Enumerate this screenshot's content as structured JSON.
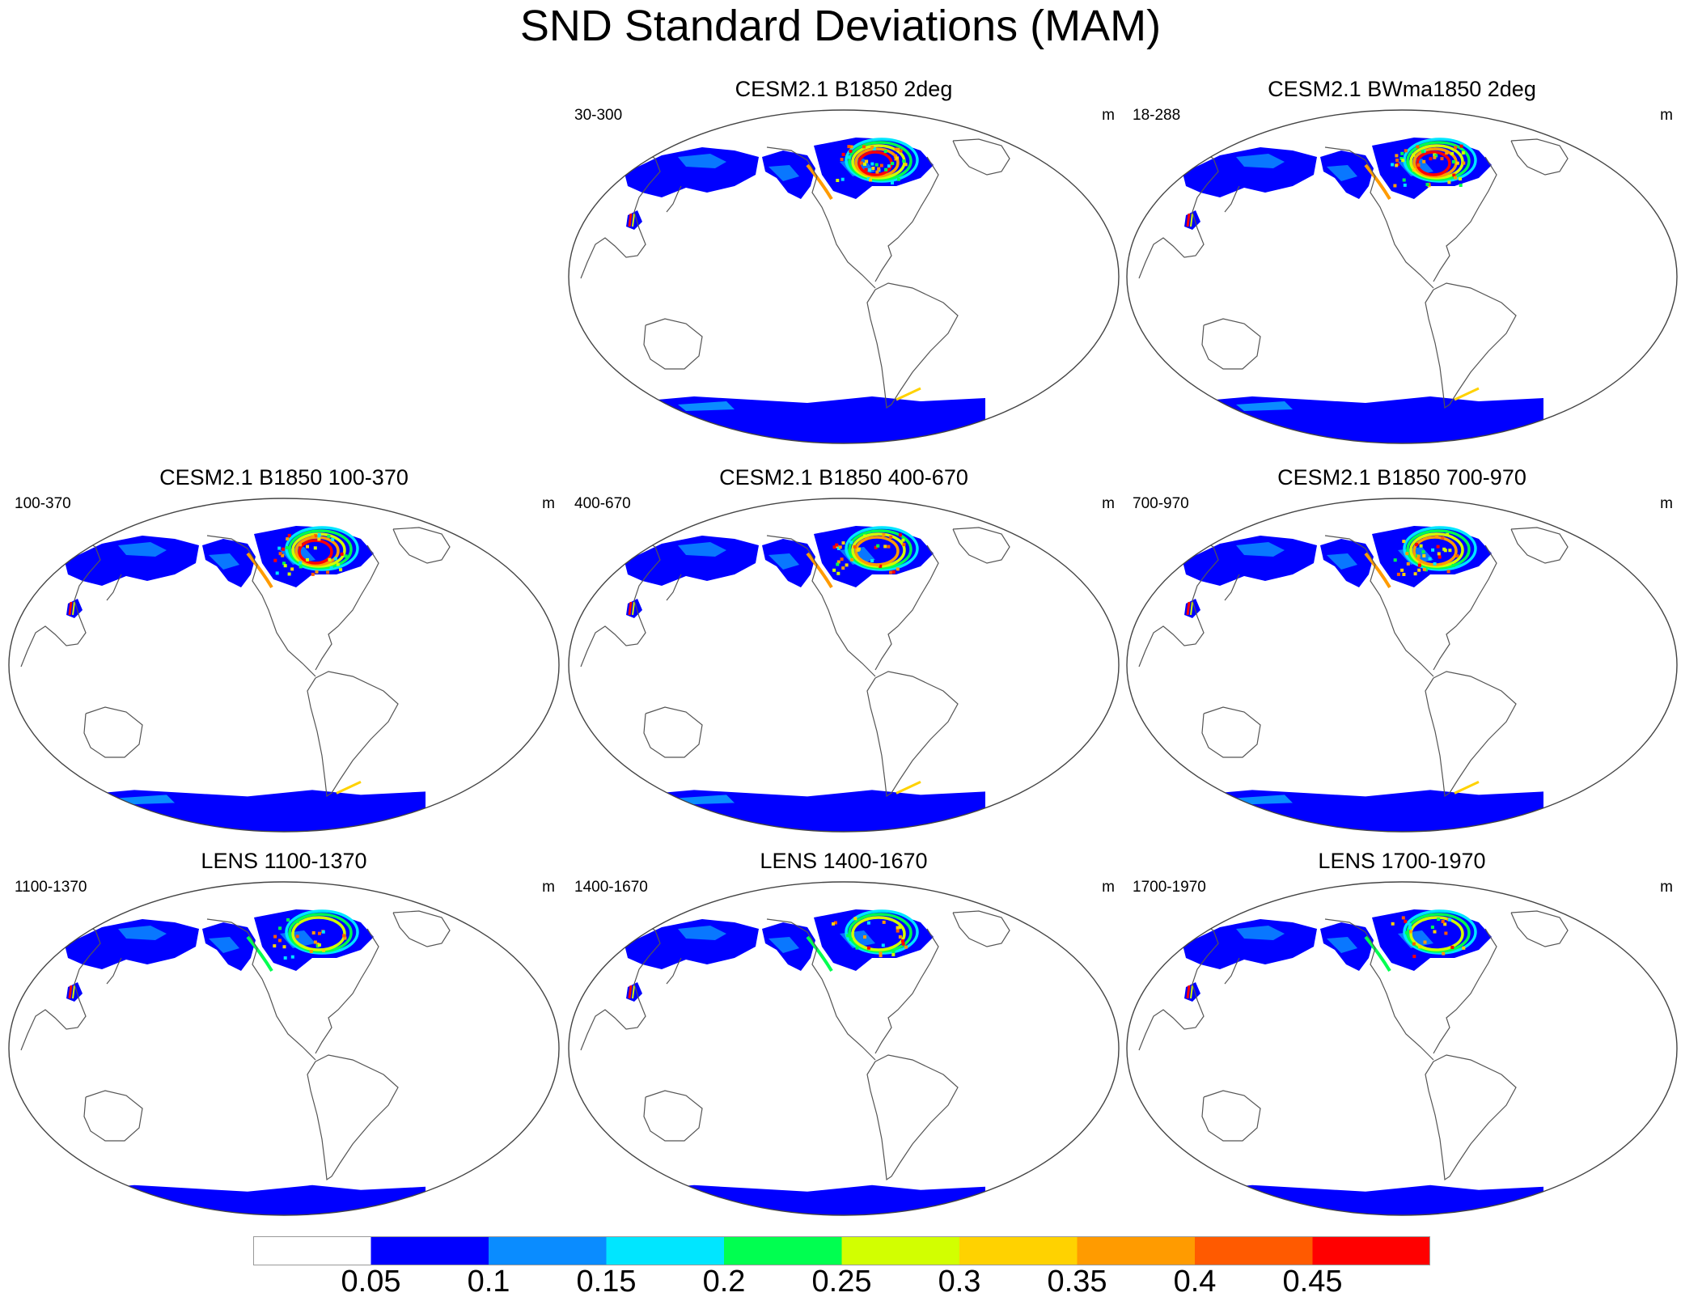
{
  "title": "SND Standard Deviations (MAM)",
  "panels": [
    {
      "title": "CESM2.1 B1850 2deg",
      "range": "30-300",
      "unit": "m",
      "intensity": 1.0,
      "south": 1.0
    },
    {
      "title": "CESM2.1 BWma1850 2deg",
      "range": "18-288",
      "unit": "m",
      "intensity": 1.0,
      "south": 1.0
    },
    {
      "title": "CESM2.1 B1850 100-370",
      "range": "100-370",
      "unit": "m",
      "intensity": 0.9,
      "south": 0.8
    },
    {
      "title": "CESM2.1 B1850 400-670",
      "range": "400-670",
      "unit": "m",
      "intensity": 0.85,
      "south": 0.8
    },
    {
      "title": "CESM2.1 B1850 700-970",
      "range": "700-970",
      "unit": "m",
      "intensity": 0.85,
      "south": 0.8
    },
    {
      "title": "LENS 1100-1370",
      "range": "1100-1370",
      "unit": "m",
      "intensity": 0.55,
      "south": 0.35
    },
    {
      "title": "LENS 1400-1670",
      "range": "1400-1670",
      "unit": "m",
      "intensity": 0.55,
      "south": 0.35
    },
    {
      "title": "LENS 1700-1970",
      "range": "1700-1970",
      "unit": "m",
      "intensity": 0.55,
      "south": 0.35
    }
  ],
  "colorbar": {
    "labels": [
      "0.05",
      "0.1",
      "0.15",
      "0.2",
      "0.25",
      "0.3",
      "0.35",
      "0.4",
      "0.45"
    ],
    "colors": [
      "#ffffff",
      "#0000ff",
      "#0a8cff",
      "#00e6ff",
      "#00ff50",
      "#d2ff00",
      "#ffd200",
      "#ff9b00",
      "#ff5a00",
      "#ff0000"
    ]
  }
}
